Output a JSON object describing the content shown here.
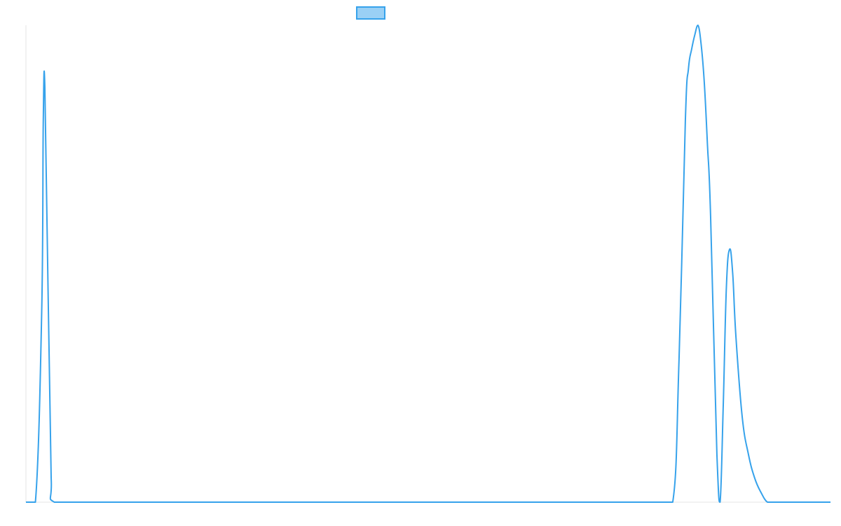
{
  "chart_data": {
    "type": "line",
    "title": "",
    "xlabel": "",
    "ylabel": "",
    "x": [
      0,
      3,
      5,
      5.5,
      6,
      7,
      8,
      9,
      20,
      40,
      60,
      80,
      100,
      120,
      140,
      160,
      180,
      200,
      205,
      207,
      209,
      210,
      211,
      212,
      213,
      214,
      215,
      216,
      217,
      219,
      220,
      221,
      222,
      223,
      224,
      225,
      227,
      229,
      231,
      233,
      235,
      237,
      240,
      245,
      255
    ],
    "ylim": [
      0,
      1
    ],
    "series": [
      {
        "name": "",
        "color": "#36a2eb",
        "fill": "#9ad0f5",
        "values": [
          0,
          0,
          0.4,
          0.8,
          0.87,
          0.45,
          0.05,
          0,
          0,
          0,
          0,
          0,
          0,
          0,
          0,
          0,
          0,
          0,
          0,
          0.3,
          0.8,
          0.91,
          0.95,
          0.98,
          1.0,
          0.96,
          0.88,
          0.75,
          0.6,
          0.1,
          0,
          0.2,
          0.45,
          0.53,
          0.48,
          0.35,
          0.18,
          0.1,
          0.05,
          0.02,
          0,
          0,
          0,
          0,
          0
        ]
      }
    ],
    "grid": false,
    "legend": "top"
  }
}
